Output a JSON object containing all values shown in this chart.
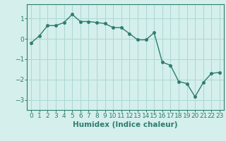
{
  "x": [
    0,
    1,
    2,
    3,
    4,
    5,
    6,
    7,
    8,
    9,
    10,
    11,
    12,
    13,
    14,
    15,
    16,
    17,
    18,
    19,
    20,
    21,
    22,
    23
  ],
  "y": [
    -0.2,
    0.15,
    0.65,
    0.65,
    0.8,
    1.2,
    0.85,
    0.85,
    0.8,
    0.75,
    0.55,
    0.55,
    0.25,
    -0.05,
    -0.05,
    0.3,
    -1.15,
    -1.3,
    -2.1,
    -2.2,
    -2.85,
    -2.15,
    -1.7,
    -1.65
  ],
  "line_color": "#2e7d6e",
  "marker": "o",
  "markersize": 2.5,
  "linewidth": 1.0,
  "xlabel": "Humidex (Indice chaleur)",
  "xlim": [
    -0.5,
    23.5
  ],
  "ylim": [
    -3.5,
    1.7
  ],
  "yticks": [
    -3,
    -2,
    -1,
    0,
    1
  ],
  "xtick_labels": [
    "0",
    "1",
    "2",
    "3",
    "4",
    "5",
    "6",
    "7",
    "8",
    "9",
    "10",
    "11",
    "12",
    "13",
    "14",
    "15",
    "16",
    "17",
    "18",
    "19",
    "20",
    "21",
    "22",
    "23"
  ],
  "bg_color": "#d4efec",
  "grid_color": "#acd8d3",
  "spine_color": "#2e7d6e",
  "xlabel_fontsize": 7.5,
  "tick_fontsize": 6.5
}
